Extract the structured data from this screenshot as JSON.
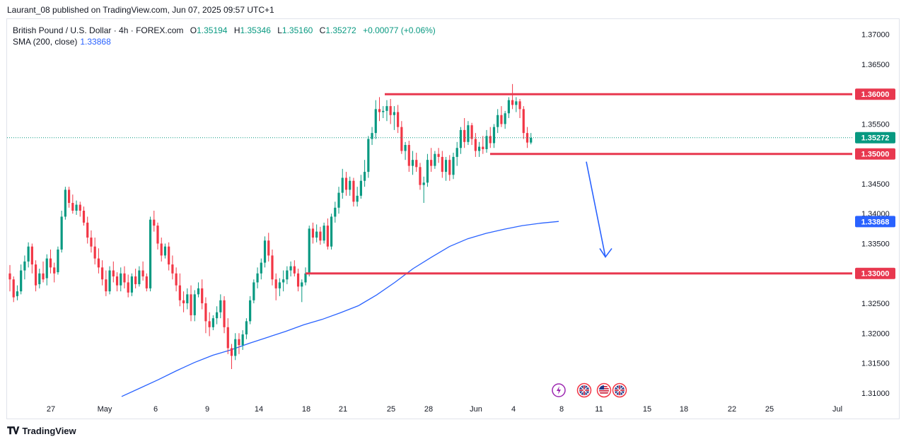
{
  "header": {
    "attribution": "Laurant_08 published on TradingView.com, Jun 07, 2025 09:57 UTC+1"
  },
  "legend": {
    "symbol": "British Pound / U.S. Dollar · 4h · FOREX.com",
    "open_label": "O",
    "open": "1.35194",
    "high_label": "H",
    "high": "1.35346",
    "low_label": "L",
    "low": "1.35160",
    "close_label": "C",
    "close": "1.35272",
    "change": "+0.00077 (+0.06%)",
    "sma_label": "SMA (200, close)",
    "sma_value": "1.33868"
  },
  "footer": {
    "brand": "TradingView"
  },
  "colors": {
    "up": "#089981",
    "down": "#f23645",
    "sma": "#2962ff",
    "level_line": "#e8384f",
    "arrow": "#2962ff",
    "grid_border": "#e0e3eb"
  },
  "icons": [
    "lightning-event-icon",
    "uk-flag-event-icon",
    "us-flag-event-icon",
    "uk-flag-event-icon"
  ],
  "chart_data": {
    "type": "candlestick",
    "symbol": "GBPUSD",
    "timeframe": "4h",
    "ylim": [
      1.3095,
      1.3715
    ],
    "y_ticks": [
      "1.37000",
      "1.36500",
      "1.36000",
      "1.35500",
      "1.35000",
      "1.34500",
      "1.34000",
      "1.33500",
      "1.33000",
      "1.32500",
      "1.32000",
      "1.31500",
      "1.31000"
    ],
    "x_ticks": [
      "27",
      "May",
      "6",
      "9",
      "14",
      "18",
      "21",
      "25",
      "28",
      "Jun",
      "4",
      "8",
      "11",
      "15",
      "18",
      "22",
      "25",
      "Jul"
    ],
    "current_price": {
      "value": 1.35272,
      "label": "1.35272"
    },
    "sma_200": {
      "last": 1.33868,
      "label": "1.33868",
      "values": [
        1.3094,
        1.3108,
        1.3122,
        1.3137,
        1.3151,
        1.3163,
        1.3172,
        1.3183,
        1.3193,
        1.3203,
        1.3214,
        1.3223,
        1.3234,
        1.3246,
        1.3264,
        1.3285,
        1.3308,
        1.3327,
        1.3345,
        1.3358,
        1.3367,
        1.3374,
        1.338,
        1.3384,
        1.3387
      ]
    },
    "levels": [
      {
        "price": 1.36,
        "label": "1.36000"
      },
      {
        "price": 1.35,
        "label": "1.35000"
      },
      {
        "price": 1.33,
        "label": "1.33000"
      }
    ],
    "annotation": {
      "type": "arrow",
      "direction": "down",
      "from_price": 1.3487,
      "to_price": 1.3298
    },
    "candles": [
      [
        1.33,
        1.3314,
        1.327,
        1.329
      ],
      [
        1.329,
        1.3295,
        1.3252,
        1.326
      ],
      [
        1.3262,
        1.328,
        1.3255,
        1.327
      ],
      [
        1.327,
        1.3315,
        1.3265,
        1.3305
      ],
      [
        1.3305,
        1.333,
        1.329,
        1.332
      ],
      [
        1.332,
        1.3352,
        1.331,
        1.3345
      ],
      [
        1.3345,
        1.335,
        1.33,
        1.3315
      ],
      [
        1.3315,
        1.3322,
        1.327,
        1.328
      ],
      [
        1.3282,
        1.3308,
        1.3275,
        1.33
      ],
      [
        1.33,
        1.332,
        1.3285,
        1.329
      ],
      [
        1.3292,
        1.3332,
        1.328,
        1.3325
      ],
      [
        1.3325,
        1.334,
        1.33,
        1.331
      ],
      [
        1.331,
        1.3318,
        1.3285,
        1.33
      ],
      [
        1.3302,
        1.3345,
        1.3298,
        1.334
      ],
      [
        1.334,
        1.3405,
        1.3335,
        1.3395
      ],
      [
        1.3395,
        1.3445,
        1.339,
        1.344
      ],
      [
        1.344,
        1.3445,
        1.341,
        1.3418
      ],
      [
        1.3418,
        1.3432,
        1.34,
        1.3405
      ],
      [
        1.3405,
        1.3422,
        1.3398,
        1.3415
      ],
      [
        1.3415,
        1.342,
        1.3395,
        1.3405
      ],
      [
        1.3405,
        1.3412,
        1.338,
        1.3385
      ],
      [
        1.3385,
        1.3395,
        1.335,
        1.336
      ],
      [
        1.336,
        1.3372,
        1.3335,
        1.3345
      ],
      [
        1.3345,
        1.336,
        1.3315,
        1.3325
      ],
      [
        1.3325,
        1.3342,
        1.33,
        1.331
      ],
      [
        1.331,
        1.3322,
        1.328,
        1.329
      ],
      [
        1.329,
        1.3305,
        1.3262,
        1.327
      ],
      [
        1.327,
        1.3312,
        1.3265,
        1.3305
      ],
      [
        1.3305,
        1.332,
        1.3285,
        1.3295
      ],
      [
        1.3295,
        1.3302,
        1.327,
        1.328
      ],
      [
        1.328,
        1.331,
        1.327,
        1.33
      ],
      [
        1.33,
        1.3312,
        1.3275,
        1.3285
      ],
      [
        1.3285,
        1.3298,
        1.326,
        1.3268
      ],
      [
        1.3268,
        1.33,
        1.3262,
        1.3295
      ],
      [
        1.3295,
        1.3308,
        1.3275,
        1.3282
      ],
      [
        1.3282,
        1.3312,
        1.3278,
        1.3305
      ],
      [
        1.3305,
        1.332,
        1.3288,
        1.3295
      ],
      [
        1.3295,
        1.33,
        1.327,
        1.3275
      ],
      [
        1.3275,
        1.3395,
        1.327,
        1.339
      ],
      [
        1.339,
        1.3405,
        1.337,
        1.338
      ],
      [
        1.338,
        1.3385,
        1.334,
        1.335
      ],
      [
        1.335,
        1.336,
        1.332,
        1.333
      ],
      [
        1.333,
        1.335,
        1.3325,
        1.3345
      ],
      [
        1.3345,
        1.3352,
        1.3305,
        1.3315
      ],
      [
        1.3315,
        1.333,
        1.329,
        1.33
      ],
      [
        1.33,
        1.331,
        1.327,
        1.328
      ],
      [
        1.328,
        1.33,
        1.3245,
        1.3255
      ],
      [
        1.3255,
        1.327,
        1.3235,
        1.325
      ],
      [
        1.325,
        1.3275,
        1.324,
        1.3265
      ],
      [
        1.3265,
        1.328,
        1.322,
        1.323
      ],
      [
        1.323,
        1.3272,
        1.322,
        1.3265
      ],
      [
        1.3265,
        1.3285,
        1.326,
        1.3275
      ],
      [
        1.3275,
        1.329,
        1.324,
        1.325
      ],
      [
        1.325,
        1.326,
        1.32,
        1.322
      ],
      [
        1.322,
        1.3235,
        1.3195,
        1.321
      ],
      [
        1.321,
        1.323,
        1.3205,
        1.3225
      ],
      [
        1.3225,
        1.3245,
        1.3215,
        1.3235
      ],
      [
        1.3235,
        1.3265,
        1.3225,
        1.3255
      ],
      [
        1.3255,
        1.3262,
        1.32,
        1.321
      ],
      [
        1.321,
        1.3225,
        1.3165,
        1.3175
      ],
      [
        1.3175,
        1.3182,
        1.314,
        1.3162
      ],
      [
        1.3162,
        1.32,
        1.3155,
        1.319
      ],
      [
        1.319,
        1.32,
        1.3165,
        1.318
      ],
      [
        1.318,
        1.3205,
        1.3172,
        1.3198
      ],
      [
        1.3198,
        1.3225,
        1.319,
        1.322
      ],
      [
        1.322,
        1.3262,
        1.3215,
        1.3255
      ],
      [
        1.3255,
        1.329,
        1.325,
        1.3285
      ],
      [
        1.3285,
        1.331,
        1.3275,
        1.33
      ],
      [
        1.33,
        1.3325,
        1.329,
        1.3318
      ],
      [
        1.3318,
        1.3362,
        1.331,
        1.3355
      ],
      [
        1.3355,
        1.3368,
        1.332,
        1.333
      ],
      [
        1.333,
        1.334,
        1.328,
        1.329
      ],
      [
        1.329,
        1.33,
        1.3255,
        1.3275
      ],
      [
        1.3275,
        1.3292,
        1.3262,
        1.3285
      ],
      [
        1.3285,
        1.3305,
        1.327,
        1.329
      ],
      [
        1.329,
        1.3312,
        1.3282,
        1.3305
      ],
      [
        1.3305,
        1.332,
        1.3295,
        1.3312
      ],
      [
        1.3312,
        1.3322,
        1.3295,
        1.33
      ],
      [
        1.33,
        1.3308,
        1.327,
        1.3278
      ],
      [
        1.3278,
        1.329,
        1.3252,
        1.3285
      ],
      [
        1.3285,
        1.331,
        1.328,
        1.33
      ],
      [
        1.33,
        1.338,
        1.3295,
        1.3375
      ],
      [
        1.3375,
        1.3385,
        1.335,
        1.336
      ],
      [
        1.336,
        1.3382,
        1.3352,
        1.337
      ],
      [
        1.337,
        1.3378,
        1.3348,
        1.3355
      ],
      [
        1.3355,
        1.3385,
        1.335,
        1.338
      ],
      [
        1.338,
        1.3392,
        1.334,
        1.3345
      ],
      [
        1.3345,
        1.34,
        1.334,
        1.3395
      ],
      [
        1.3395,
        1.342,
        1.3385,
        1.341
      ],
      [
        1.341,
        1.3445,
        1.34,
        1.3435
      ],
      [
        1.3435,
        1.3475,
        1.3425,
        1.346
      ],
      [
        1.346,
        1.347,
        1.343,
        1.344
      ],
      [
        1.344,
        1.3462,
        1.343,
        1.3455
      ],
      [
        1.3455,
        1.346,
        1.3412,
        1.342
      ],
      [
        1.342,
        1.3445,
        1.3412,
        1.343
      ],
      [
        1.343,
        1.3465,
        1.3425,
        1.3455
      ],
      [
        1.3455,
        1.349,
        1.3445,
        1.347
      ],
      [
        1.347,
        1.353,
        1.346,
        1.3525
      ],
      [
        1.3525,
        1.3545,
        1.3515,
        1.3535
      ],
      [
        1.3535,
        1.359,
        1.3525,
        1.3575
      ],
      [
        1.3575,
        1.3595,
        1.3555,
        1.357
      ],
      [
        1.357,
        1.358,
        1.356,
        1.3572
      ],
      [
        1.3572,
        1.359,
        1.3555,
        1.358
      ],
      [
        1.358,
        1.3592,
        1.355,
        1.3565
      ],
      [
        1.3565,
        1.358,
        1.354,
        1.357
      ],
      [
        1.357,
        1.3582,
        1.3535,
        1.3545
      ],
      [
        1.3545,
        1.3555,
        1.35,
        1.3505
      ],
      [
        1.3505,
        1.352,
        1.349,
        1.3515
      ],
      [
        1.3515,
        1.3522,
        1.347,
        1.348
      ],
      [
        1.348,
        1.3505,
        1.3465,
        1.349
      ],
      [
        1.349,
        1.3502,
        1.347,
        1.3478
      ],
      [
        1.3478,
        1.3485,
        1.344,
        1.3448
      ],
      [
        1.3448,
        1.3462,
        1.3418,
        1.3452
      ],
      [
        1.3452,
        1.35,
        1.3445,
        1.349
      ],
      [
        1.349,
        1.351,
        1.347,
        1.348
      ],
      [
        1.348,
        1.3505,
        1.3475,
        1.35
      ],
      [
        1.35,
        1.351,
        1.3485,
        1.3495
      ],
      [
        1.3495,
        1.3505,
        1.346,
        1.347
      ],
      [
        1.347,
        1.3495,
        1.3455,
        1.349
      ],
      [
        1.349,
        1.3498,
        1.3455,
        1.3465
      ],
      [
        1.3465,
        1.3502,
        1.3458,
        1.3495
      ],
      [
        1.3495,
        1.352,
        1.348,
        1.351
      ],
      [
        1.351,
        1.3545,
        1.35,
        1.354
      ],
      [
        1.354,
        1.356,
        1.351,
        1.352
      ],
      [
        1.352,
        1.3555,
        1.3515,
        1.3548
      ],
      [
        1.3548,
        1.3552,
        1.3515,
        1.3525
      ],
      [
        1.3525,
        1.3535,
        1.3495,
        1.3505
      ],
      [
        1.3505,
        1.352,
        1.3495,
        1.3512
      ],
      [
        1.3512,
        1.353,
        1.35,
        1.3508
      ],
      [
        1.3508,
        1.354,
        1.3502,
        1.353
      ],
      [
        1.353,
        1.3545,
        1.351,
        1.3518
      ],
      [
        1.3518,
        1.355,
        1.351,
        1.3545
      ],
      [
        1.3545,
        1.3575,
        1.3535,
        1.3565
      ],
      [
        1.3565,
        1.358,
        1.3545,
        1.355
      ],
      [
        1.355,
        1.3572,
        1.3542,
        1.3568
      ],
      [
        1.3568,
        1.3595,
        1.356,
        1.359
      ],
      [
        1.359,
        1.3617,
        1.3575,
        1.3582
      ],
      [
        1.3582,
        1.3595,
        1.357,
        1.3588
      ],
      [
        1.3588,
        1.3592,
        1.356,
        1.3575
      ],
      [
        1.3575,
        1.358,
        1.3525,
        1.3535
      ],
      [
        1.3535,
        1.3545,
        1.351,
        1.3519
      ],
      [
        1.3519,
        1.3535,
        1.3516,
        1.3527
      ]
    ]
  }
}
